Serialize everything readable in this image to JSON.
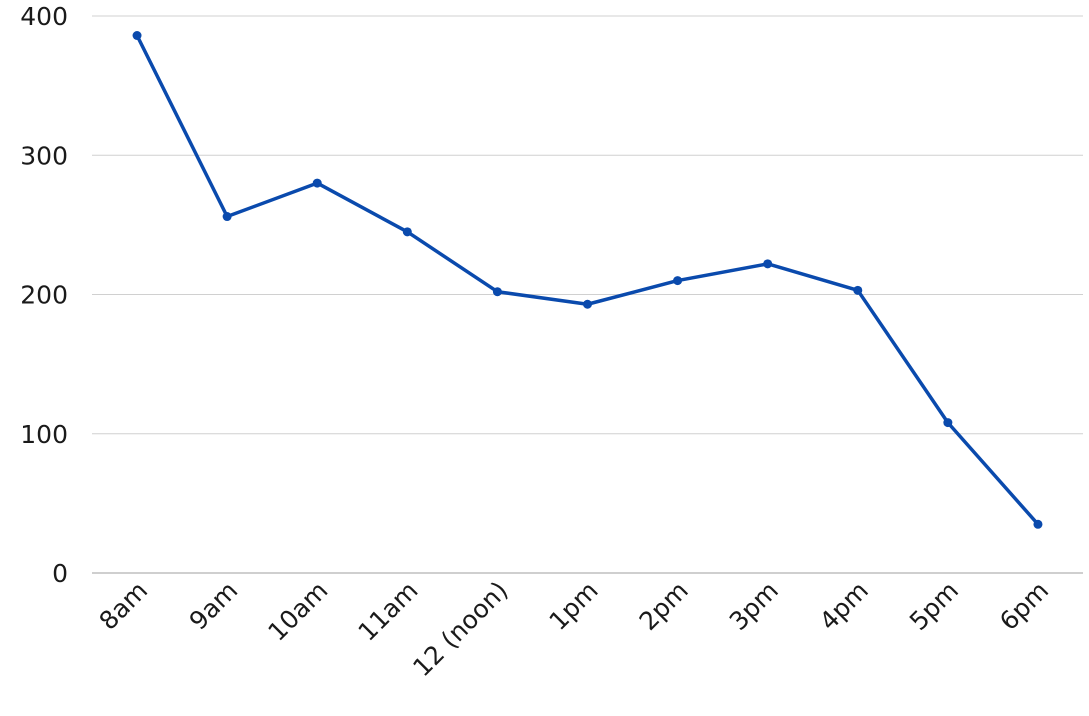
{
  "chart_data": {
    "type": "line",
    "title": "",
    "xlabel": "",
    "ylabel": "",
    "categories": [
      "8am",
      "9am",
      "10am",
      "11am",
      "12 (noon)",
      "1pm",
      "2pm",
      "3pm",
      "4pm",
      "5pm",
      "6pm"
    ],
    "series": [
      {
        "values": [
          386,
          256,
          280,
          245,
          202,
          193,
          210,
          222,
          203,
          108,
          35
        ]
      }
    ],
    "ylim": [
      0,
      400
    ],
    "yticks": [
      0,
      100,
      200,
      300,
      400
    ],
    "grid": true,
    "legend": "none",
    "colors": {
      "line": "#0a4aad",
      "grid": "#d0d0d0"
    }
  }
}
